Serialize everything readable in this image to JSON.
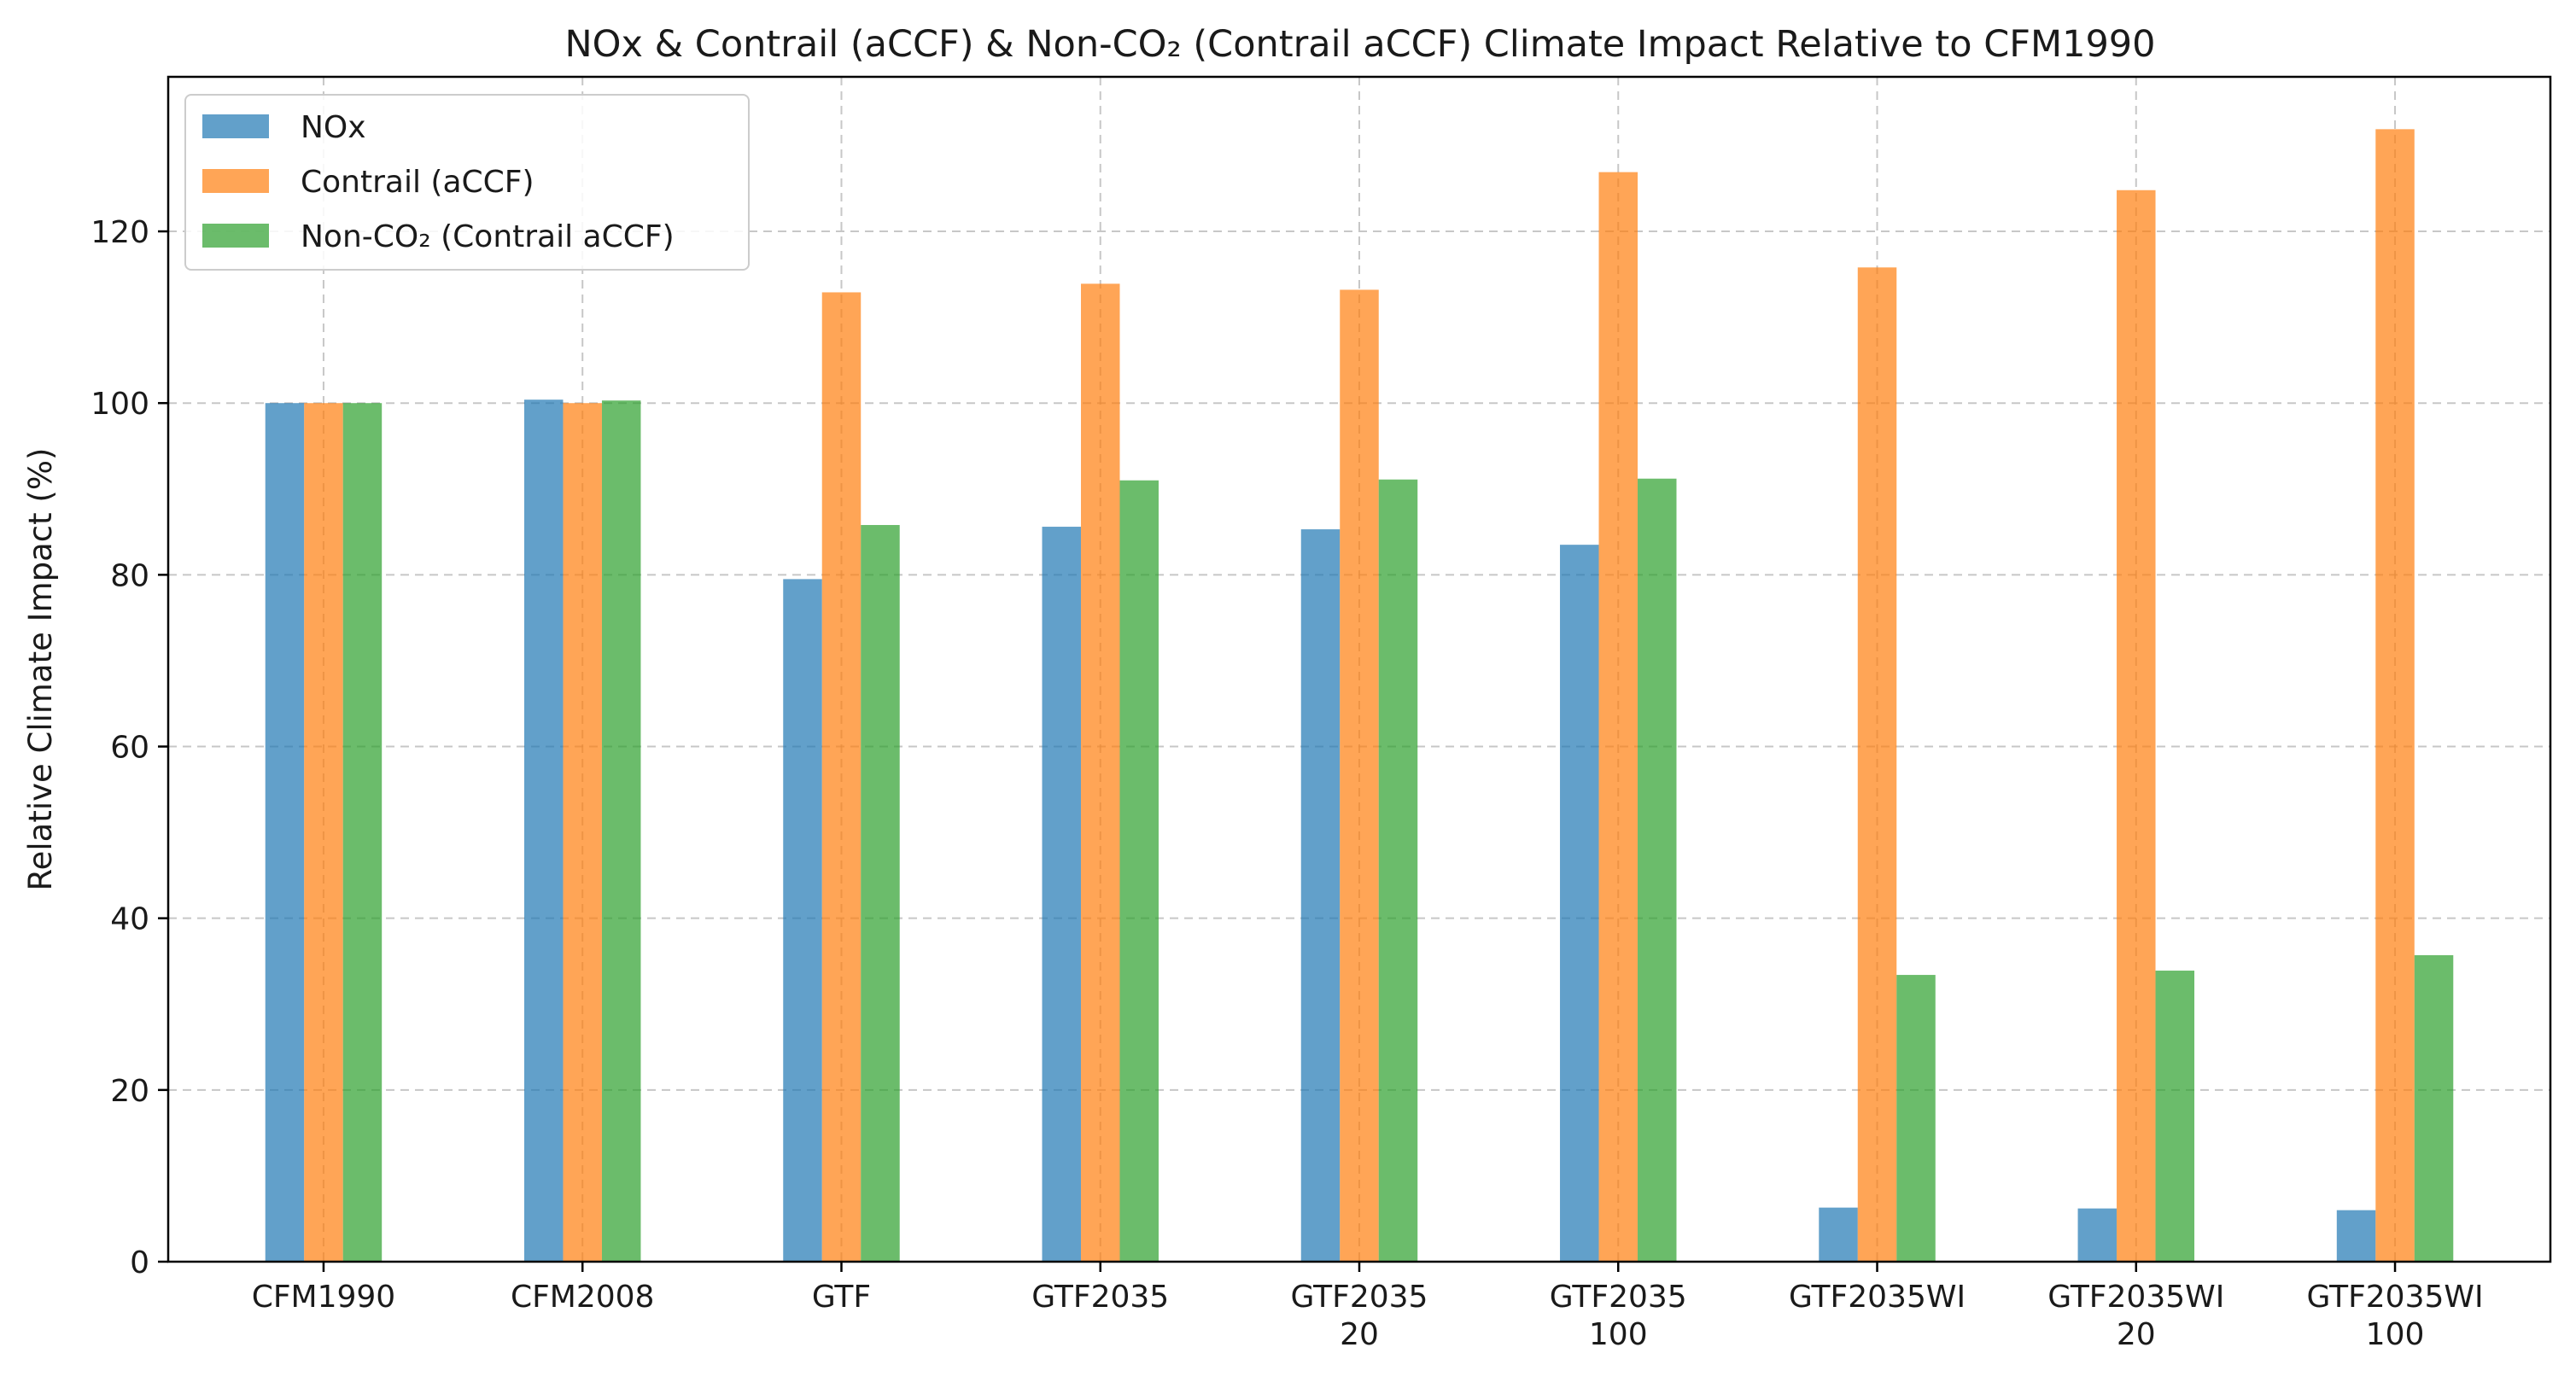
{
  "chart_data": {
    "type": "bar",
    "title": "NOx & Contrail (aCCF) & Non-CO₂ (Contrail aCCF) Climate Impact Relative to CFM1990",
    "xlabel": "",
    "ylabel": "Relative Climate Impact (%)",
    "ylim": [
      0,
      138
    ],
    "yticks": [
      0,
      20,
      40,
      60,
      80,
      100,
      120
    ],
    "grid": true,
    "legend_position": "top-left",
    "categories": [
      [
        "CFM1990"
      ],
      [
        "CFM2008"
      ],
      [
        "GTF"
      ],
      [
        "GTF2035"
      ],
      [
        "GTF2035",
        "20"
      ],
      [
        "GTF2035",
        "100"
      ],
      [
        "GTF2035WI"
      ],
      [
        "GTF2035WI",
        "20"
      ],
      [
        "GTF2035WI",
        "100"
      ]
    ],
    "series": [
      {
        "name": "NOx",
        "color": "#1f77b4",
        "values": [
          100.0,
          100.4,
          79.5,
          85.6,
          85.3,
          83.5,
          6.3,
          6.2,
          6.0
        ]
      },
      {
        "name": "Contrail (aCCF)",
        "color": "#ff7f0e",
        "values": [
          100.0,
          100.0,
          112.9,
          113.9,
          113.2,
          126.9,
          115.8,
          124.8,
          131.9
        ]
      },
      {
        "name": "Non-CO₂ (Contrail aCCF)",
        "color": "#2ca02c",
        "values": [
          100.0,
          100.3,
          85.8,
          91.0,
          91.1,
          91.2,
          33.4,
          33.9,
          35.7
        ]
      }
    ]
  }
}
